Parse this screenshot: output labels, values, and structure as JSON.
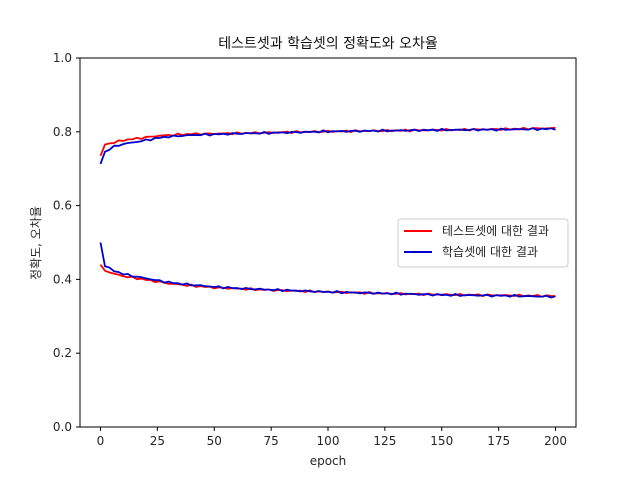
{
  "chart_data": {
    "type": "line",
    "title": "테스트셋과 학습셋의 정확도와 오차율",
    "xlabel": "epoch",
    "ylabel": "정확도, 오차율",
    "xlim": [
      -9,
      209
    ],
    "ylim": [
      0.0,
      1.0
    ],
    "xticks": [
      "0",
      "25",
      "50",
      "75",
      "100",
      "125",
      "150",
      "175",
      "200"
    ],
    "yticks": [
      "0.0",
      "0.2",
      "0.4",
      "0.6",
      "0.8",
      "1.0"
    ],
    "grid": false,
    "legend": {
      "placement": "center-right"
    },
    "series": [
      {
        "name": "테스트셋에 대한 결과",
        "color": "#ff0000",
        "x": [
          0,
          2,
          5,
          10,
          15,
          20,
          25,
          30,
          40,
          50,
          60,
          75,
          100,
          125,
          150,
          175,
          200
        ],
        "values": [
          0.735,
          0.765,
          0.77,
          0.777,
          0.781,
          0.785,
          0.789,
          0.791,
          0.794,
          0.795,
          0.796,
          0.798,
          0.801,
          0.803,
          0.805,
          0.807,
          0.81
        ]
      },
      {
        "name": "",
        "color": "#ff0000",
        "x": [
          0,
          2,
          5,
          10,
          15,
          20,
          25,
          30,
          40,
          50,
          60,
          75,
          100,
          125,
          150,
          175,
          200
        ],
        "values": [
          0.44,
          0.424,
          0.417,
          0.409,
          0.404,
          0.399,
          0.394,
          0.389,
          0.383,
          0.378,
          0.375,
          0.371,
          0.366,
          0.362,
          0.359,
          0.357,
          0.355
        ]
      },
      {
        "name": "학습셋에 대한 결과",
        "color": "#0000cc",
        "x": [
          0,
          2,
          5,
          10,
          15,
          20,
          25,
          30,
          40,
          50,
          60,
          75,
          100,
          125,
          150,
          175,
          200
        ],
        "values": [
          0.713,
          0.745,
          0.758,
          0.767,
          0.772,
          0.777,
          0.783,
          0.787,
          0.791,
          0.793,
          0.795,
          0.797,
          0.801,
          0.803,
          0.805,
          0.806,
          0.808
        ]
      },
      {
        "name": "",
        "color": "#0000cc",
        "x": [
          0,
          2,
          5,
          10,
          15,
          20,
          25,
          30,
          40,
          50,
          60,
          75,
          100,
          125,
          150,
          175,
          200
        ],
        "values": [
          0.5,
          0.438,
          0.425,
          0.415,
          0.408,
          0.403,
          0.397,
          0.392,
          0.385,
          0.38,
          0.376,
          0.372,
          0.366,
          0.362,
          0.358,
          0.356,
          0.353
        ]
      }
    ]
  }
}
